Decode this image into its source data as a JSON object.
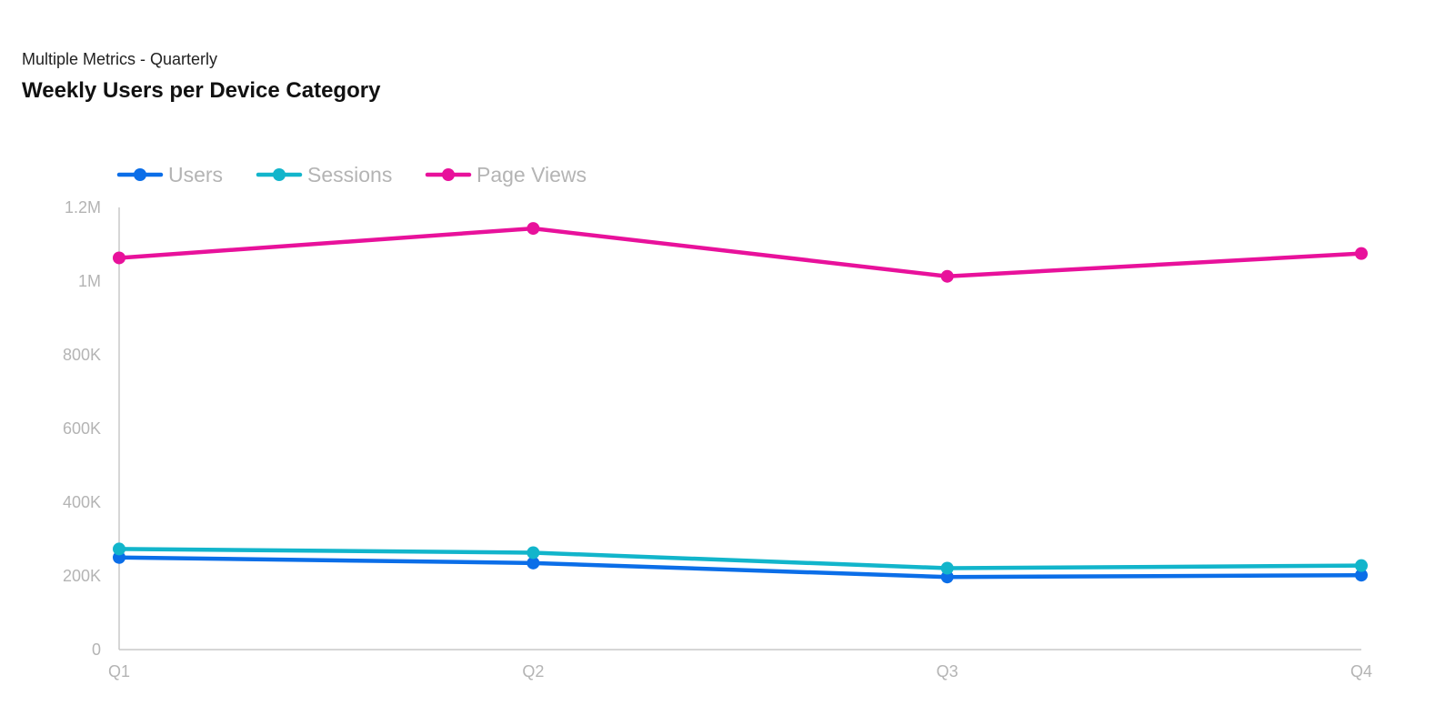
{
  "header": {
    "subtitle": "Multiple Metrics - Quarterly",
    "title": "Weekly Users per Device Category"
  },
  "chart_data": {
    "type": "line",
    "title": "Weekly Users per Device Category",
    "subtitle": "Multiple Metrics - Quarterly",
    "categories": [
      "Q1",
      "Q2",
      "Q3",
      "Q4"
    ],
    "ylim": [
      0,
      1200000
    ],
    "yticks": [
      0,
      200000,
      400000,
      600000,
      800000,
      1000000,
      1200000
    ],
    "ytick_labels": [
      "0",
      "200K",
      "400K",
      "600K",
      "800K",
      "1M",
      "1.2M"
    ],
    "grid": false,
    "legend_position": "top-left",
    "series": [
      {
        "name": "Users",
        "color": "#0b6ee8",
        "values": [
          250000,
          235000,
          197000,
          202000
        ]
      },
      {
        "name": "Sessions",
        "color": "#12b5cb",
        "values": [
          273000,
          263000,
          221000,
          228000
        ]
      },
      {
        "name": "Page Views",
        "color": "#e8119b",
        "values": [
          1063000,
          1143000,
          1013000,
          1075000
        ]
      }
    ]
  }
}
